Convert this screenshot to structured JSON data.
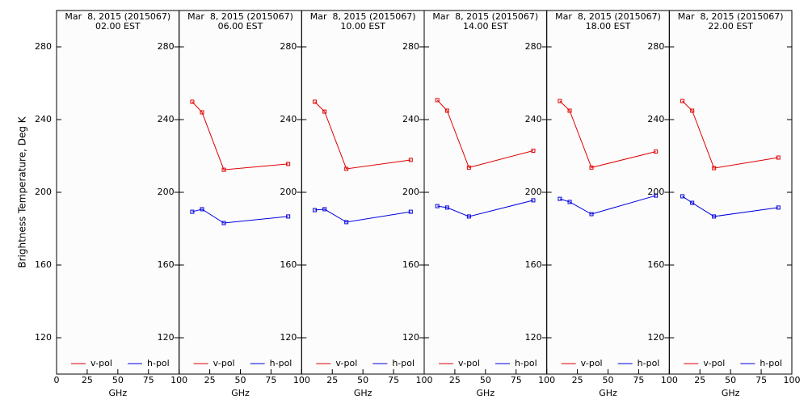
{
  "chart_data": [
    {
      "type": "line",
      "title": "Mar  8, 2015 (2015067)",
      "subtitle": "02.00 EST",
      "xlabel": "GHz",
      "ylabel": "Brightness Temperature, Deg K",
      "x": [
        10.7,
        18.7,
        36.5,
        89
      ],
      "xlim": [
        0,
        100
      ],
      "xticks": [
        0,
        25,
        50,
        75,
        100
      ],
      "ylim": [
        100,
        300
      ],
      "yticks": [
        120,
        160,
        200,
        240,
        280
      ],
      "legend": "bottom",
      "series": [
        {
          "name": "v-pol",
          "color": "#e00000",
          "values": [
            null,
            null,
            null,
            null
          ]
        },
        {
          "name": "h-pol",
          "color": "#0000e0",
          "values": [
            null,
            null,
            null,
            null
          ]
        }
      ]
    },
    {
      "type": "line",
      "title": "Mar  8, 2015 (2015067)",
      "subtitle": "06.00 EST",
      "xlabel": "GHz",
      "x": [
        10.7,
        18.7,
        36.5,
        89
      ],
      "xlim": [
        0,
        100
      ],
      "xticks": [
        25,
        50,
        75,
        100
      ],
      "ylim": [
        100,
        300
      ],
      "yticks": [
        120,
        160,
        200,
        240,
        280
      ],
      "legend": "bottom",
      "series": [
        {
          "name": "v-pol",
          "color": "#e00000",
          "values": [
            249.8,
            244,
            212.4,
            215.6
          ]
        },
        {
          "name": "h-pol",
          "color": "#0000e0",
          "values": [
            189.3,
            190.7,
            183.1,
            186.7
          ]
        }
      ]
    },
    {
      "type": "line",
      "title": "Mar  8, 2015 (2015067)",
      "subtitle": "10.00 EST",
      "xlabel": "GHz",
      "x": [
        10.7,
        18.7,
        36.5,
        89
      ],
      "xlim": [
        0,
        100
      ],
      "xticks": [
        25,
        50,
        75,
        100
      ],
      "ylim": [
        100,
        300
      ],
      "yticks": [
        120,
        160,
        200,
        240,
        280
      ],
      "legend": "bottom",
      "series": [
        {
          "name": "v-pol",
          "color": "#e00000",
          "values": [
            249.8,
            244.4,
            212.9,
            217.8
          ]
        },
        {
          "name": "h-pol",
          "color": "#0000e0",
          "values": [
            190.2,
            190.7,
            183.6,
            189.3
          ]
        }
      ]
    },
    {
      "type": "line",
      "title": "Mar  8, 2015 (2015067)",
      "subtitle": "14.00 EST",
      "xlabel": "GHz",
      "x": [
        10.7,
        18.7,
        36.5,
        89
      ],
      "xlim": [
        0,
        100
      ],
      "xticks": [
        25,
        50,
        75,
        100
      ],
      "ylim": [
        100,
        300
      ],
      "yticks": [
        120,
        160,
        200,
        240,
        280
      ],
      "legend": "bottom",
      "series": [
        {
          "name": "v-pol",
          "color": "#e00000",
          "values": [
            250.7,
            244.9,
            213.6,
            222.9
          ]
        },
        {
          "name": "h-pol",
          "color": "#0000e0",
          "values": [
            192.4,
            191.6,
            186.7,
            195.6
          ]
        }
      ]
    },
    {
      "type": "line",
      "title": "Mar  8, 2015 (2015067)",
      "subtitle": "18.00 EST",
      "xlabel": "GHz",
      "x": [
        10.7,
        18.7,
        36.5,
        89
      ],
      "xlim": [
        0,
        100
      ],
      "xticks": [
        25,
        50,
        75,
        100
      ],
      "ylim": [
        100,
        300
      ],
      "yticks": [
        120,
        160,
        200,
        240,
        280
      ],
      "legend": "bottom",
      "series": [
        {
          "name": "v-pol",
          "color": "#e00000",
          "values": [
            250.2,
            244.9,
            213.6,
            222.4
          ]
        },
        {
          "name": "h-pol",
          "color": "#0000e0",
          "values": [
            196.4,
            194.7,
            188,
            198.2
          ]
        }
      ]
    },
    {
      "type": "line",
      "title": "Mar  8, 2015 (2015067)",
      "subtitle": "22.00 EST",
      "xlabel": "GHz",
      "x": [
        10.7,
        18.7,
        36.5,
        89
      ],
      "xlim": [
        0,
        100
      ],
      "xticks": [
        25,
        50,
        75,
        100
      ],
      "ylim": [
        100,
        300
      ],
      "yticks": [
        120,
        160,
        200,
        240,
        280
      ],
      "legend": "bottom",
      "series": [
        {
          "name": "v-pol",
          "color": "#e00000",
          "values": [
            250.2,
            244.9,
            213.3,
            219.1
          ]
        },
        {
          "name": "h-pol",
          "color": "#0000e0",
          "values": [
            197.8,
            194.2,
            186.7,
            191.6
          ]
        }
      ]
    }
  ]
}
